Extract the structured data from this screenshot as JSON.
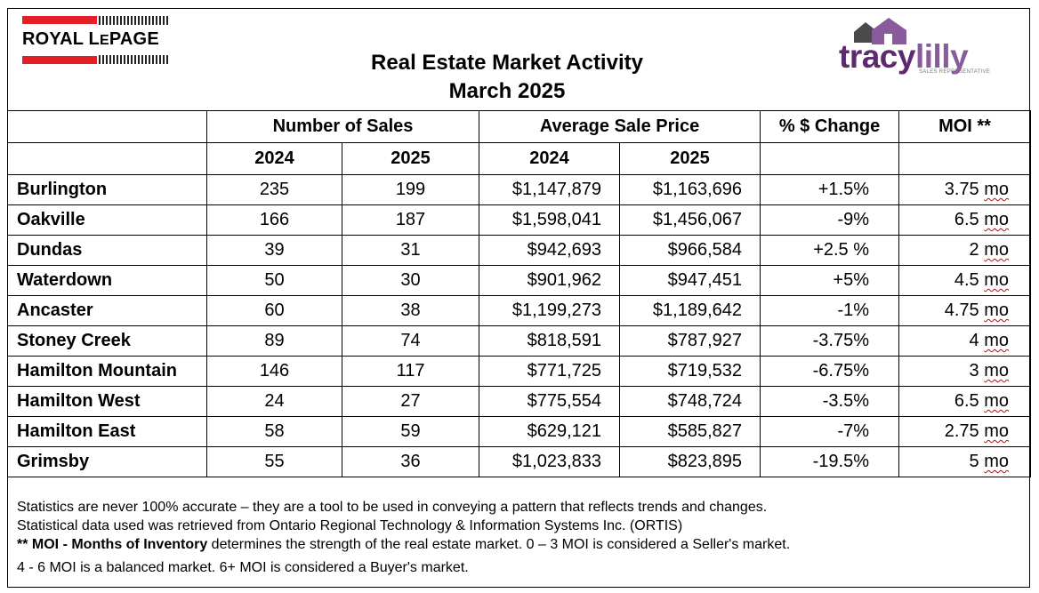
{
  "logos": {
    "left": {
      "text": "ROYAL LEPAGE",
      "accent": "#e41e26"
    },
    "right": {
      "text": "tracylilly",
      "subtext": "SALES REPRESENTATIVE",
      "accent": "#5d2a6e"
    }
  },
  "title": {
    "line1": "Real Estate Market Activity",
    "line2": "March 2025"
  },
  "headers": {
    "sales": "Number of Sales",
    "price": "Average Sale Price",
    "change": "% $ Change",
    "moi": "MOI **",
    "year_a": "2024",
    "year_b": "2025"
  },
  "rows": [
    {
      "area": "Burlington",
      "sales_2024": "235",
      "sales_2025": "199",
      "price_2024": "$1,147,879",
      "price_2025": "$1,163,696",
      "change": "+1.5%",
      "moi_value": "3.75",
      "moi_unit": "mo"
    },
    {
      "area": "Oakville",
      "sales_2024": "166",
      "sales_2025": "187",
      "price_2024": "$1,598,041",
      "price_2025": "$1,456,067",
      "change": "-9%",
      "moi_value": "6.5",
      "moi_unit": "mo"
    },
    {
      "area": "Dundas",
      "sales_2024": "39",
      "sales_2025": "31",
      "price_2024": "$942,693",
      "price_2025": "$966,584",
      "change": "+2.5 %",
      "moi_value": "2",
      "moi_unit": "mo"
    },
    {
      "area": "Waterdown",
      "sales_2024": "50",
      "sales_2025": "30",
      "price_2024": "$901,962",
      "price_2025": "$947,451",
      "change": "+5%",
      "moi_value": "4.5",
      "moi_unit": "mo"
    },
    {
      "area": "Ancaster",
      "sales_2024": "60",
      "sales_2025": "38",
      "price_2024": "$1,199,273",
      "price_2025": "$1,189,642",
      "change": "-1%",
      "moi_value": "4.75",
      "moi_unit": "mo"
    },
    {
      "area": "Stoney Creek",
      "sales_2024": "89",
      "sales_2025": "74",
      "price_2024": "$818,591",
      "price_2025": "$787,927",
      "change": "-3.75%",
      "moi_value": "4",
      "moi_unit": "mo"
    },
    {
      "area": "Hamilton Mountain",
      "sales_2024": "146",
      "sales_2025": "117",
      "price_2024": "$771,725",
      "price_2025": "$719,532",
      "change": "-6.75%",
      "moi_value": "3",
      "moi_unit": "mo"
    },
    {
      "area": "Hamilton West",
      "sales_2024": "24",
      "sales_2025": "27",
      "price_2024": "$775,554",
      "price_2025": "$748,724",
      "change": "-3.5%",
      "moi_value": "6.5",
      "moi_unit": "mo"
    },
    {
      "area": "Hamilton East",
      "sales_2024": "58",
      "sales_2025": "59",
      "price_2024": "$629,121",
      "price_2025": "$585,827",
      "change": "-7%",
      "moi_value": "2.75",
      "moi_unit": "mo"
    },
    {
      "area": "Grimsby",
      "sales_2024": "55",
      "sales_2025": "36",
      "price_2024": "$1,023,833",
      "price_2025": "$823,895",
      "change": "-19.5%",
      "moi_value": "5",
      "moi_unit": "mo"
    }
  ],
  "notes": {
    "line1": "Statistics are never 100% accurate – they are a tool to be used in conveying a pattern that reflects trends and changes.",
    "line2": "Statistical data used was retrieved from Ontario Regional Technology & Information Systems Inc. (ORTIS)",
    "line3_bold": "** MOI - Months of Inventory",
    "line3_rest": " determines the strength of the real estate market. 0 – 3 MOI is considered a Seller's market.",
    "line4": "4 - 6 MOI is a balanced market. 6+ MOI is considered a Buyer's market."
  }
}
